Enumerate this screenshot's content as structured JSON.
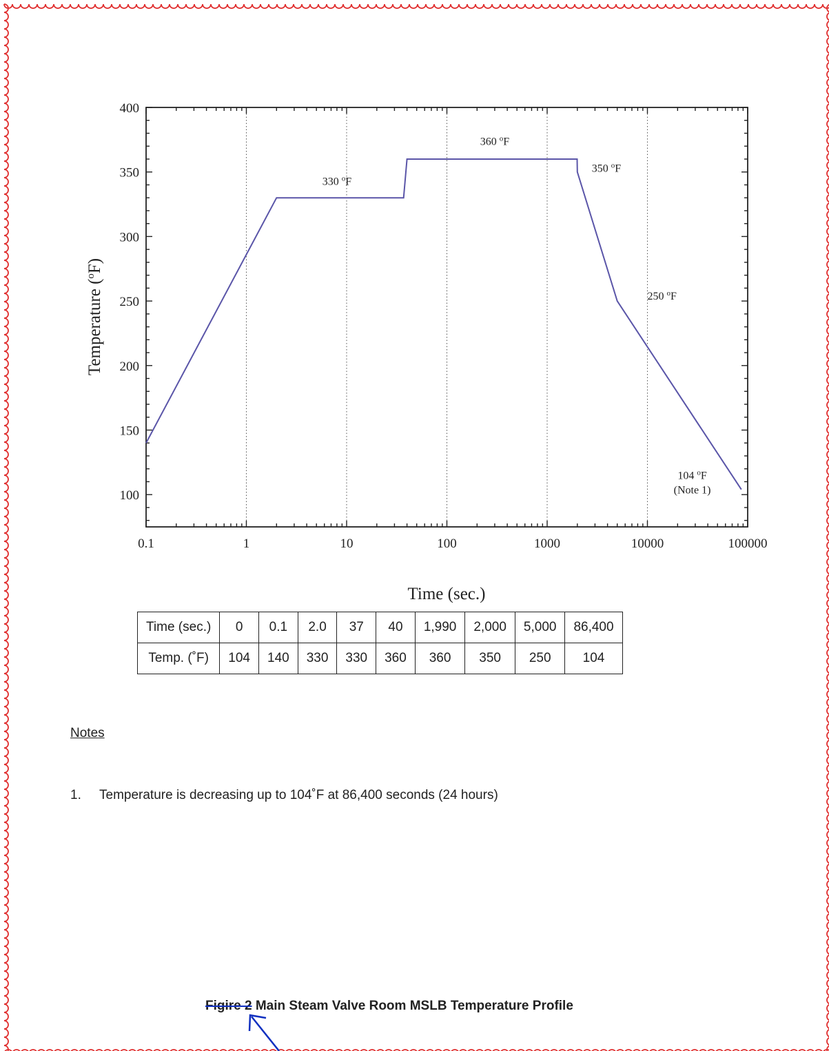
{
  "chart_data": {
    "type": "line",
    "title": "",
    "xlabel": "Time (sec.)",
    "ylabel_main": "Temperature (",
    "ylabel_sup": "o",
    "ylabel_end": "F)",
    "xscale": "log",
    "xlim": [
      0.1,
      100000
    ],
    "ylim": [
      75,
      400
    ],
    "x_ticks": [
      0.1,
      1,
      10,
      100,
      1000,
      10000,
      100000
    ],
    "x_tick_labels": [
      "0.1",
      "1",
      "10",
      "100",
      "1000",
      "10000",
      "100000"
    ],
    "y_ticks": [
      100,
      150,
      200,
      250,
      300,
      350,
      400
    ],
    "y_tick_labels": [
      "100",
      "150",
      "200",
      "250",
      "300",
      "350",
      "400"
    ],
    "grid": "vertical dotted at decades",
    "line_color": "#5a55a8",
    "series": [
      {
        "x": [
          0.1,
          2.0,
          37,
          40,
          1990,
          2000,
          5000,
          86400
        ],
        "y": [
          140,
          330,
          330,
          360,
          360,
          350,
          250,
          104
        ]
      }
    ],
    "annotations": [
      {
        "value": "330 ",
        "sup": "o",
        "unit": "F",
        "x": 8,
        "y": 340
      },
      {
        "value": "360 ",
        "sup": "o",
        "unit": "F",
        "x": 300,
        "y": 371
      },
      {
        "value": "350 ",
        "sup": "o",
        "unit": "F",
        "x": 3900,
        "y": 350
      },
      {
        "value": "250 ",
        "sup": "o",
        "unit": "F",
        "x": 14000,
        "y": 251
      },
      {
        "value": "104 ",
        "sup": "o",
        "unit": "F",
        "x": 28000,
        "y": 112
      },
      {
        "value": "(Note 1)",
        "sup": "",
        "unit": "",
        "x": 28000,
        "y": 101
      }
    ]
  },
  "table": {
    "rows": [
      [
        "Time (sec.)",
        "0",
        "0.1",
        "2.0",
        "37",
        "40",
        "1,990",
        "2,000",
        "5,000",
        "86,400"
      ],
      [
        "Temp. (˚F)",
        "104",
        "140",
        "330",
        "330",
        "360",
        "360",
        "350",
        "250",
        "104"
      ]
    ]
  },
  "notes": {
    "title": "Notes",
    "item_number": "1.",
    "item_text": "Temperature is decreasing up to 104˚F  at 86,400 seconds (24 hours)"
  },
  "caption": {
    "struck": "Figire 2",
    "text": " Main Steam Valve Room MSLB Temperature Profile"
  },
  "markup_colors": {
    "border": "#e03030",
    "arrow": "#1030c0"
  }
}
